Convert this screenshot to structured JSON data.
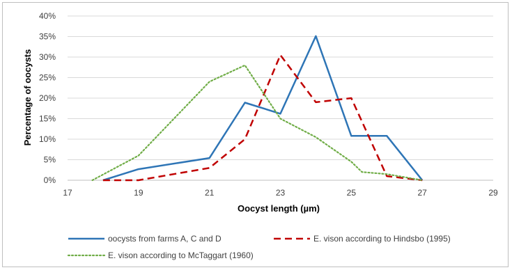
{
  "chart_data": {
    "type": "line",
    "xlabel": "Oocyst length (µm)",
    "ylabel": "Percentage of oocysts",
    "xlim": [
      17,
      29
    ],
    "ylim": [
      0,
      0.4
    ],
    "x_ticks": [
      "17",
      "19",
      "21",
      "23",
      "25",
      "27",
      "29"
    ],
    "y_ticks": [
      "0%",
      "5%",
      "10%",
      "15%",
      "20%",
      "25%",
      "30%",
      "35%",
      "40%"
    ],
    "grid": "horizontal",
    "legend_position": "bottom",
    "series": [
      {
        "name": "oocysts from farms A, C and D",
        "color": "#2e75b6",
        "dash": "solid",
        "x": [
          18,
          19,
          21,
          22,
          23,
          24,
          25,
          26,
          27
        ],
        "y": [
          0.0,
          0.027,
          0.054,
          0.189,
          0.162,
          0.351,
          0.108,
          0.108,
          0.0
        ]
      },
      {
        "name": "E. vison according to Hindsbo (1995)",
        "color": "#c00000",
        "dash": "dashed",
        "x": [
          18,
          19,
          21,
          22,
          23,
          24,
          25,
          26,
          27
        ],
        "y": [
          0.0,
          0.0,
          0.03,
          0.1,
          0.305,
          0.19,
          0.2,
          0.01,
          0.0
        ]
      },
      {
        "name": "E. vison according to McTaggart (1960)",
        "color": "#70ad47",
        "dash": "dotted",
        "x": [
          17.7,
          19,
          21,
          22,
          23,
          24,
          25,
          25.3,
          26,
          27
        ],
        "y": [
          0.0,
          0.06,
          0.24,
          0.28,
          0.15,
          0.105,
          0.045,
          0.02,
          0.015,
          0.0
        ]
      }
    ]
  }
}
